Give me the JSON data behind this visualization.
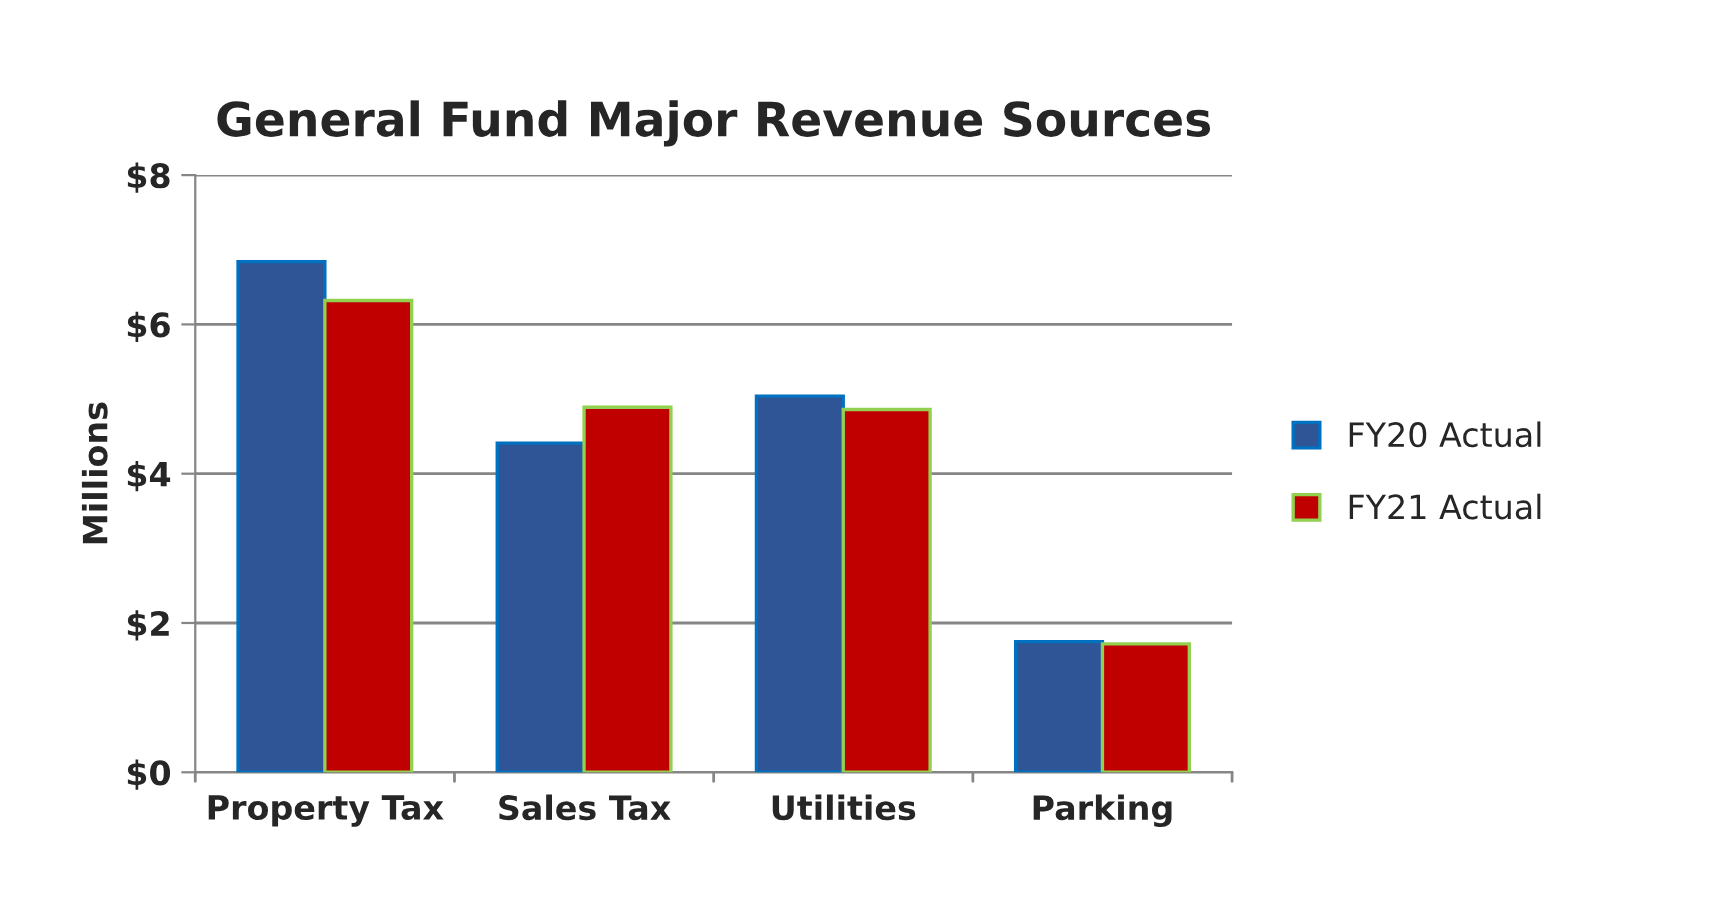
{
  "chart_data": {
    "type": "bar",
    "title": "General Fund Major Revenue Sources",
    "ylabel": "Millions",
    "categories": [
      "Property Tax",
      "Sales Tax",
      "Utilities",
      "Parking"
    ],
    "series": [
      {
        "name": "FY20 Actual",
        "color": "#2f5597",
        "values": [
          6.84,
          4.41,
          5.04,
          1.75
        ]
      },
      {
        "name": "FY21 Actual",
        "color": "#c00000",
        "values": [
          6.32,
          4.89,
          4.86,
          1.72
        ]
      }
    ],
    "ylim": [
      0,
      8
    ],
    "yticks": [
      {
        "value": 0,
        "label": "$0"
      },
      {
        "value": 2,
        "label": "$2"
      },
      {
        "value": 4,
        "label": "$4"
      },
      {
        "value": 6,
        "label": "$6"
      },
      {
        "value": 8,
        "label": "$8"
      }
    ],
    "grid": "y",
    "legend": "right"
  }
}
